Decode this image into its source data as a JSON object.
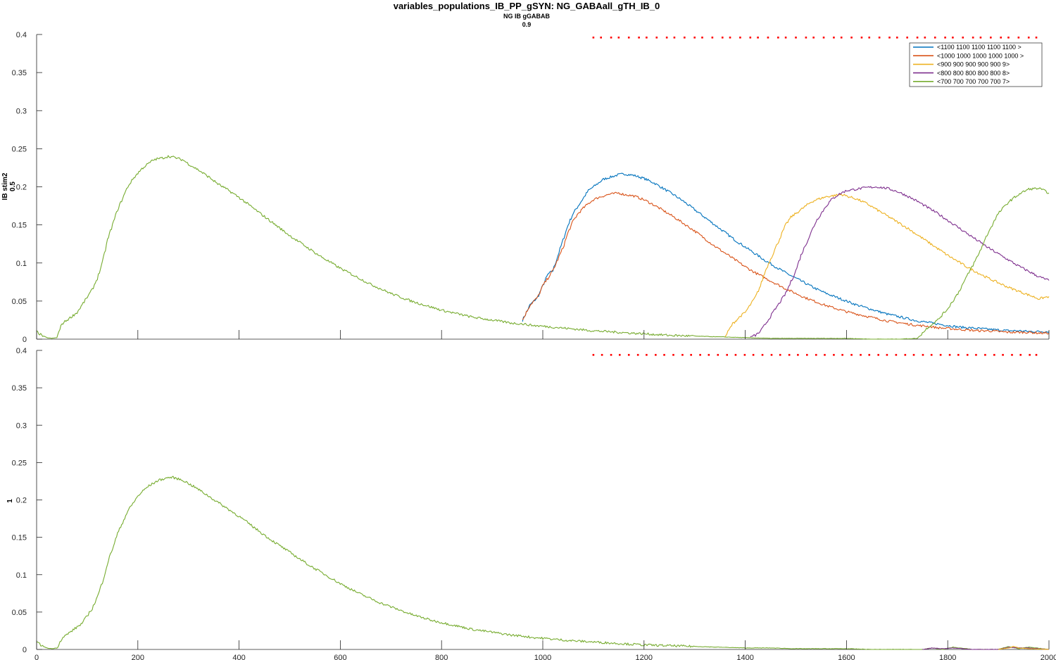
{
  "figure": {
    "title": "variables_populations_IB_PP_gSYN: NG_GABAall_gTH_IB_0",
    "subtitle1": "NG IB gGABAB",
    "subtitle2": "0.9"
  },
  "colors": {
    "axis": "#262626",
    "raster": "#ff0000",
    "s1100": "#0072BD",
    "s1000": "#D95319",
    "s900": "#EDB120",
    "s800": "#7E2F8E",
    "s700": "#77AC30"
  },
  "chart_data": [
    {
      "type": "line",
      "ylabel_line1": "IB stim2",
      "ylabel_line2": "0.5",
      "xlim": [
        0,
        2000
      ],
      "ylim": [
        0,
        0.4
      ],
      "xticks": [
        0,
        200,
        400,
        600,
        800,
        1000,
        1200,
        1400,
        1600,
        1800,
        2000
      ],
      "yticks": [
        0,
        0.05,
        0.1,
        0.15,
        0.2,
        0.25,
        0.3,
        0.35,
        0.4
      ],
      "ytick_labels": [
        "0",
        "0.05",
        "0.1",
        "0.15",
        "0.2",
        "0.25",
        "0.3",
        "0.35",
        "0.4"
      ],
      "xtick_labels": [
        "0",
        "200",
        "400",
        "600",
        "800",
        "1000",
        "1200",
        "1400",
        "1600",
        "1800",
        "2000"
      ],
      "legend": {
        "position": "top-right",
        "entries": [
          "<1100 1100 1100 1100 1100 >",
          "<1000 1000 1000 1000 1000 >",
          "<900 900 900 900 900 9>",
          "<800 800 800 800 800 8>",
          "<700 700 700 700 700 7>"
        ]
      },
      "raster_y": 0.396,
      "raster_x": [
        1100,
        1115,
        1135,
        1150,
        1170,
        1190,
        1205,
        1225,
        1245,
        1260,
        1280,
        1300,
        1315,
        1335,
        1355,
        1370,
        1390,
        1410,
        1425,
        1445,
        1465,
        1480,
        1500,
        1520,
        1535,
        1555,
        1575,
        1590,
        1610,
        1630,
        1645,
        1665,
        1685,
        1700,
        1720,
        1740,
        1755,
        1775,
        1795,
        1810,
        1830,
        1850,
        1865,
        1885,
        1905,
        1920,
        1940,
        1960,
        1975
      ],
      "series": [
        {
          "name": "<1100 1100 1100 1100 1100 >",
          "color_key": "s1100",
          "x": [
            960,
            975,
            990,
            1000,
            1010,
            1020,
            1030,
            1040,
            1050,
            1060,
            1070,
            1080,
            1090,
            1100,
            1110,
            1120,
            1130,
            1140,
            1150,
            1160,
            1170,
            1180,
            1200,
            1220,
            1240,
            1260,
            1280,
            1300,
            1320,
            1340,
            1360,
            1380,
            1400,
            1420,
            1440,
            1460,
            1480,
            1500,
            1520,
            1540,
            1560,
            1580,
            1600,
            1620,
            1640,
            1660,
            1680,
            1700,
            1720,
            1740,
            1760,
            1780,
            1800,
            1820,
            1840,
            1860,
            1880,
            1900,
            1920,
            1940,
            1960,
            1980,
            2000
          ],
          "y": [
            0.025,
            0.045,
            0.055,
            0.07,
            0.085,
            0.09,
            0.11,
            0.13,
            0.15,
            0.165,
            0.175,
            0.185,
            0.195,
            0.2,
            0.205,
            0.21,
            0.212,
            0.214,
            0.216,
            0.217,
            0.216,
            0.215,
            0.211,
            0.205,
            0.197,
            0.189,
            0.18,
            0.17,
            0.16,
            0.15,
            0.14,
            0.13,
            0.121,
            0.112,
            0.103,
            0.095,
            0.087,
            0.08,
            0.073,
            0.066,
            0.06,
            0.055,
            0.05,
            0.045,
            0.041,
            0.037,
            0.033,
            0.03,
            0.027,
            0.024,
            0.022,
            0.02,
            0.018,
            0.016,
            0.015,
            0.014,
            0.013,
            0.012,
            0.011,
            0.011,
            0.01,
            0.01,
            0.01
          ]
        },
        {
          "name": "<1000 1000 1000 1000 1000 >",
          "color_key": "s1000",
          "x": [
            960,
            975,
            990,
            1000,
            1010,
            1020,
            1030,
            1040,
            1050,
            1060,
            1070,
            1080,
            1090,
            1100,
            1110,
            1120,
            1130,
            1140,
            1150,
            1160,
            1170,
            1180,
            1200,
            1220,
            1240,
            1260,
            1280,
            1300,
            1320,
            1340,
            1360,
            1380,
            1400,
            1420,
            1440,
            1460,
            1480,
            1500,
            1520,
            1540,
            1560,
            1580,
            1600,
            1620,
            1640,
            1660,
            1680,
            1700,
            1720,
            1740,
            1760,
            1780,
            1800,
            1820,
            1840,
            1860,
            1880,
            1900,
            1920,
            1940,
            1960,
            1980,
            2000
          ],
          "y": [
            0.025,
            0.045,
            0.055,
            0.07,
            0.08,
            0.09,
            0.105,
            0.12,
            0.14,
            0.155,
            0.165,
            0.172,
            0.178,
            0.183,
            0.186,
            0.188,
            0.19,
            0.191,
            0.192,
            0.19,
            0.189,
            0.188,
            0.183,
            0.176,
            0.168,
            0.16,
            0.151,
            0.142,
            0.132,
            0.122,
            0.113,
            0.104,
            0.095,
            0.087,
            0.08,
            0.073,
            0.066,
            0.06,
            0.054,
            0.049,
            0.044,
            0.04,
            0.036,
            0.033,
            0.03,
            0.027,
            0.024,
            0.022,
            0.02,
            0.018,
            0.017,
            0.015,
            0.014,
            0.013,
            0.012,
            0.011,
            0.011,
            0.01,
            0.009,
            0.009,
            0.009,
            0.008,
            0.008
          ]
        },
        {
          "name": "<900 900 900 900 900 9>",
          "color_key": "s900",
          "x": [
            1360,
            1375,
            1390,
            1400,
            1410,
            1420,
            1430,
            1440,
            1450,
            1460,
            1470,
            1480,
            1490,
            1500,
            1510,
            1520,
            1530,
            1540,
            1550,
            1560,
            1570,
            1580,
            1590,
            1600,
            1620,
            1640,
            1660,
            1680,
            1700,
            1720,
            1740,
            1760,
            1780,
            1800,
            1820,
            1840,
            1860,
            1880,
            1900,
            1920,
            1940,
            1960,
            1980,
            2000
          ],
          "y": [
            0.003,
            0.02,
            0.03,
            0.035,
            0.045,
            0.055,
            0.07,
            0.09,
            0.105,
            0.12,
            0.135,
            0.15,
            0.16,
            0.165,
            0.17,
            0.175,
            0.18,
            0.183,
            0.185,
            0.187,
            0.188,
            0.189,
            0.19,
            0.188,
            0.184,
            0.178,
            0.17,
            0.162,
            0.154,
            0.146,
            0.137,
            0.128,
            0.119,
            0.11,
            0.102,
            0.094,
            0.087,
            0.08,
            0.074,
            0.068,
            0.063,
            0.058,
            0.053,
            0.056
          ]
        },
        {
          "name": "<800 800 800 800 800 8>",
          "color_key": "s800",
          "x": [
            1410,
            1420,
            1430,
            1440,
            1450,
            1460,
            1470,
            1480,
            1490,
            1500,
            1510,
            1520,
            1530,
            1540,
            1550,
            1560,
            1570,
            1580,
            1590,
            1600,
            1620,
            1640,
            1660,
            1680,
            1700,
            1720,
            1740,
            1760,
            1780,
            1800,
            1820,
            1840,
            1860,
            1880,
            1900,
            1920,
            1940,
            1960,
            1980,
            2000
          ],
          "y": [
            0.003,
            0.005,
            0.01,
            0.02,
            0.03,
            0.04,
            0.05,
            0.06,
            0.075,
            0.09,
            0.11,
            0.125,
            0.14,
            0.155,
            0.165,
            0.175,
            0.183,
            0.188,
            0.192,
            0.195,
            0.197,
            0.199,
            0.2,
            0.198,
            0.194,
            0.188,
            0.181,
            0.173,
            0.165,
            0.156,
            0.147,
            0.138,
            0.129,
            0.12,
            0.112,
            0.104,
            0.096,
            0.089,
            0.082,
            0.077
          ]
        },
        {
          "name": "<700 700 700 700 700 7>",
          "color_key": "s700",
          "x": [
            0,
            10,
            20,
            30,
            40,
            50,
            60,
            70,
            80,
            90,
            100,
            110,
            120,
            130,
            140,
            150,
            160,
            170,
            180,
            190,
            200,
            210,
            220,
            230,
            240,
            250,
            260,
            270,
            280,
            290,
            300,
            320,
            340,
            360,
            380,
            400,
            420,
            440,
            460,
            480,
            500,
            520,
            540,
            560,
            580,
            600,
            620,
            640,
            660,
            680,
            700,
            720,
            740,
            760,
            780,
            800,
            820,
            840,
            860,
            880,
            900,
            920,
            940,
            960,
            980,
            1000,
            1050,
            1100,
            1150,
            1200,
            1250,
            1300,
            1350,
            1400,
            1450,
            1500,
            1550,
            1600,
            1650,
            1700,
            1740,
            1760,
            1780,
            1800,
            1820,
            1840,
            1860,
            1880,
            1900,
            1920,
            1940,
            1960,
            1980,
            2000
          ],
          "y": [
            0.01,
            0.005,
            0.002,
            0.001,
            0.002,
            0.02,
            0.025,
            0.03,
            0.035,
            0.045,
            0.055,
            0.065,
            0.08,
            0.1,
            0.13,
            0.15,
            0.17,
            0.185,
            0.2,
            0.21,
            0.218,
            0.225,
            0.23,
            0.235,
            0.237,
            0.238,
            0.24,
            0.239,
            0.237,
            0.235,
            0.23,
            0.222,
            0.213,
            0.203,
            0.195,
            0.186,
            0.176,
            0.166,
            0.156,
            0.146,
            0.136,
            0.127,
            0.118,
            0.109,
            0.101,
            0.093,
            0.086,
            0.079,
            0.072,
            0.066,
            0.06,
            0.055,
            0.05,
            0.046,
            0.042,
            0.038,
            0.035,
            0.032,
            0.029,
            0.027,
            0.025,
            0.023,
            0.021,
            0.02,
            0.018,
            0.017,
            0.014,
            0.011,
            0.009,
            0.007,
            0.005,
            0.004,
            0.003,
            0.002,
            0.001,
            0.001,
            0.001,
            0.001,
            0.0,
            0.0,
            0.001,
            0.015,
            0.025,
            0.04,
            0.06,
            0.085,
            0.11,
            0.14,
            0.165,
            0.18,
            0.19,
            0.197,
            0.198,
            0.192
          ]
        }
      ]
    },
    {
      "type": "line",
      "ylabel_line1": "1",
      "xlim": [
        0,
        2000
      ],
      "ylim": [
        0,
        0.4
      ],
      "xticks": [
        0,
        200,
        400,
        600,
        800,
        1000,
        1200,
        1400,
        1600,
        1800,
        2000
      ],
      "yticks": [
        0,
        0.05,
        0.1,
        0.15,
        0.2,
        0.25,
        0.3,
        0.35,
        0.4
      ],
      "ytick_labels": [
        "0",
        "0.05",
        "0.1",
        "0.15",
        "0.2",
        "0.25",
        "0.3",
        "0.35",
        "0.4"
      ],
      "xtick_labels": [
        "0",
        "200",
        "400",
        "600",
        "800",
        "1000",
        "1200",
        "1400",
        "1600",
        "1800",
        "2000"
      ],
      "raster_y": 0.394,
      "raster_x": [
        1100,
        1117,
        1135,
        1152,
        1170,
        1188,
        1205,
        1223,
        1240,
        1258,
        1276,
        1293,
        1311,
        1328,
        1346,
        1364,
        1381,
        1399,
        1416,
        1434,
        1452,
        1469,
        1487,
        1504,
        1522,
        1540,
        1557,
        1575,
        1592,
        1610,
        1628,
        1645,
        1663,
        1680,
        1698,
        1716,
        1733,
        1751,
        1768,
        1786,
        1804,
        1821,
        1839,
        1856,
        1874,
        1892,
        1909,
        1927,
        1944,
        1962,
        1975
      ],
      "series": [
        {
          "name": "",
          "color_key": "s700",
          "x": [
            0,
            10,
            20,
            30,
            40,
            50,
            60,
            70,
            80,
            90,
            100,
            110,
            120,
            130,
            140,
            150,
            160,
            170,
            180,
            190,
            200,
            210,
            220,
            230,
            240,
            250,
            260,
            270,
            280,
            290,
            300,
            320,
            340,
            360,
            380,
            400,
            420,
            440,
            460,
            480,
            500,
            520,
            540,
            560,
            580,
            600,
            620,
            640,
            660,
            680,
            700,
            720,
            740,
            760,
            780,
            800,
            820,
            840,
            860,
            880,
            900,
            920,
            940,
            960,
            980,
            1000,
            1050,
            1100,
            1150,
            1200,
            1250,
            1300,
            1350,
            1400,
            1450,
            1500,
            1550,
            1600,
            1650,
            1700,
            1750,
            1770,
            1790,
            1810,
            1850,
            1900,
            1920,
            1940,
            1960,
            2000
          ],
          "y": [
            0.01,
            0.005,
            0.002,
            0.001,
            0.002,
            0.015,
            0.02,
            0.025,
            0.03,
            0.035,
            0.045,
            0.055,
            0.07,
            0.09,
            0.115,
            0.135,
            0.155,
            0.17,
            0.185,
            0.195,
            0.205,
            0.212,
            0.218,
            0.222,
            0.226,
            0.228,
            0.23,
            0.23,
            0.228,
            0.226,
            0.222,
            0.214,
            0.205,
            0.196,
            0.187,
            0.178,
            0.168,
            0.158,
            0.148,
            0.139,
            0.13,
            0.121,
            0.112,
            0.104,
            0.096,
            0.088,
            0.081,
            0.074,
            0.068,
            0.062,
            0.057,
            0.052,
            0.047,
            0.043,
            0.039,
            0.036,
            0.033,
            0.03,
            0.027,
            0.025,
            0.023,
            0.021,
            0.019,
            0.018,
            0.016,
            0.015,
            0.012,
            0.01,
            0.008,
            0.006,
            0.005,
            0.004,
            0.003,
            0.002,
            0.002,
            0.001,
            0.001,
            0.001,
            0.0,
            0.0,
            0.0,
            0.002,
            0.0,
            0.003,
            0.0,
            0.0,
            0.004,
            0.001,
            0.003,
            0.0
          ]
        },
        {
          "name": "",
          "color_key": "s800",
          "x": [
            1750,
            1770,
            1790,
            1810,
            1850,
            1900,
            1920,
            1940,
            1960,
            2000
          ],
          "y": [
            0.0,
            0.002,
            0.001,
            0.002,
            0.0,
            0.0,
            0.003,
            0.002,
            0.002,
            0.0
          ]
        },
        {
          "name": "",
          "color_key": "s900",
          "x": [
            1900,
            1920,
            1930,
            1940,
            1960,
            2000
          ],
          "y": [
            0.0,
            0.002,
            0.004,
            0.002,
            0.001,
            0.0
          ]
        }
      ]
    }
  ]
}
